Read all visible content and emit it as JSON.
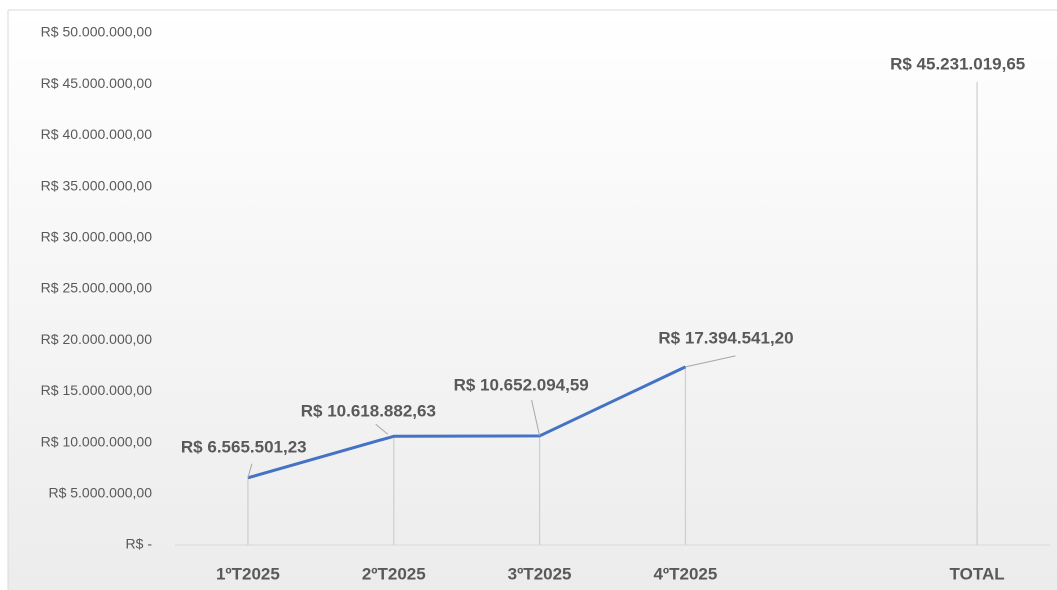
{
  "chart_data": {
    "type": "line",
    "categories": [
      "1ºT2025",
      "2ºT2025",
      "3ºT2025",
      "4ºT2025",
      null,
      "TOTAL"
    ],
    "values": [
      6565501.23,
      10618882.63,
      10652094.59,
      17394541.2,
      null,
      45231019.65
    ],
    "value_labels": [
      "R$ 6.565.501,23",
      "R$ 10.618.882,63",
      "R$ 10.652.094,59",
      "R$ 17.394.541,20",
      null,
      "R$ 45.231.019,65"
    ],
    "color": "#4472c4",
    "ylim": [
      0,
      50000000
    ],
    "yticks": [
      {
        "value": 0,
        "label": "R$ -"
      },
      {
        "value": 5000000,
        "label": "R$ 5.000.000,00"
      },
      {
        "value": 10000000,
        "label": "R$ 10.000.000,00"
      },
      {
        "value": 15000000,
        "label": "R$ 15.000.000,00"
      },
      {
        "value": 20000000,
        "label": "R$ 20.000.000,00"
      },
      {
        "value": 25000000,
        "label": "R$ 25.000.000,00"
      },
      {
        "value": 30000000,
        "label": "R$ 30.000.000,00"
      },
      {
        "value": 35000000,
        "label": "R$ 35.000.000,00"
      },
      {
        "value": 40000000,
        "label": "R$ 40.000.000,00"
      },
      {
        "value": 45000000,
        "label": "R$ 45.000.000,00"
      },
      {
        "value": 50000000,
        "label": "R$ 50.000.000,00"
      }
    ]
  }
}
